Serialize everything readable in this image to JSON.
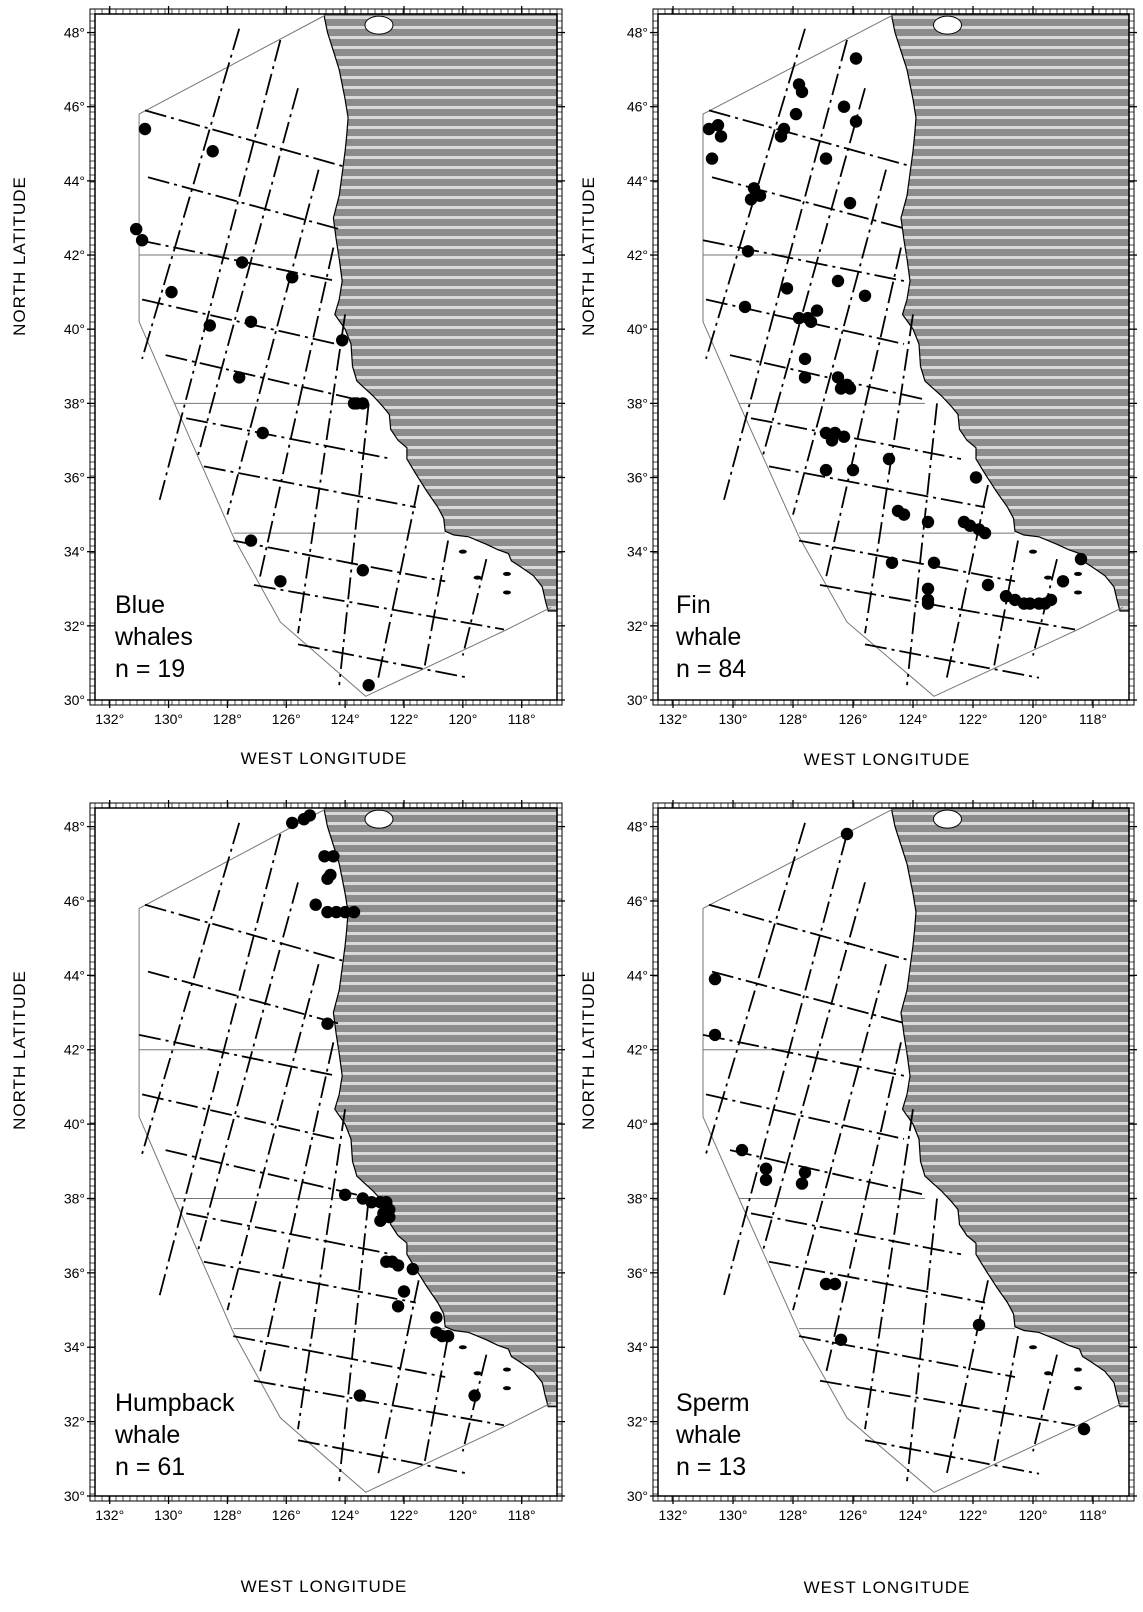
{
  "colors": {
    "land_fill": "#8c8c8c",
    "land_stripe": "#d9d9d9",
    "track_line": "#000000",
    "boundary_line": "#777777",
    "sighting_dot": "#000000"
  },
  "axes": {
    "xlabel": "WEST LONGITUDE",
    "ylabel": "NORTH LATITUDE",
    "x_ticks": [
      "132°",
      "130°",
      "128°",
      "126°",
      "124°",
      "122°",
      "120°",
      "118°"
    ],
    "y_ticks": [
      "30°",
      "32°",
      "34°",
      "36°",
      "38°",
      "40°",
      "42°",
      "44°",
      "46°",
      "48°"
    ],
    "lon_range": [
      -132.5,
      -116.8
    ],
    "lat_range": [
      30.0,
      48.5
    ]
  },
  "chart_data": [
    {
      "type": "scatter",
      "species": "Blue",
      "legend_lines": [
        "Blue",
        "whales",
        "n = 19"
      ],
      "xlabel": "WEST LONGITUDE",
      "ylabel": "NORTH LATITUDE",
      "points": [
        [
          -130.8,
          45.4
        ],
        [
          -128.5,
          44.8
        ],
        [
          -131.1,
          42.7
        ],
        [
          -130.9,
          42.4
        ],
        [
          -127.5,
          41.8
        ],
        [
          -125.8,
          41.4
        ],
        [
          -129.9,
          41.0
        ],
        [
          -128.6,
          40.1
        ],
        [
          -127.2,
          40.2
        ],
        [
          -124.1,
          39.7
        ],
        [
          -127.6,
          38.7
        ],
        [
          -123.7,
          38.0
        ],
        [
          -123.4,
          38.0
        ],
        [
          -126.8,
          37.2
        ],
        [
          -127.2,
          34.3
        ],
        [
          -126.2,
          33.2
        ],
        [
          -123.4,
          33.5
        ],
        [
          -123.2,
          30.4
        ],
        [
          -123.6,
          38.0
        ]
      ]
    },
    {
      "type": "scatter",
      "species": "Fin",
      "legend_lines": [
        "Fin",
        "whale",
        "n = 84"
      ],
      "xlabel": "WEST LONGITUDE",
      "ylabel": "NORTH LATITUDE",
      "points": [
        [
          -125.9,
          47.3
        ],
        [
          -127.8,
          46.6
        ],
        [
          -127.7,
          46.4
        ],
        [
          -126.3,
          46.0
        ],
        [
          -130.8,
          45.4
        ],
        [
          -130.5,
          45.5
        ],
        [
          -130.4,
          45.2
        ],
        [
          -128.3,
          45.4
        ],
        [
          -128.4,
          45.2
        ],
        [
          -127.9,
          45.8
        ],
        [
          -125.9,
          45.6
        ],
        [
          -130.7,
          44.6
        ],
        [
          -126.9,
          44.6
        ],
        [
          -129.3,
          43.8
        ],
        [
          -129.1,
          43.6
        ],
        [
          -129.4,
          43.5
        ],
        [
          -126.1,
          43.4
        ],
        [
          -129.5,
          42.1
        ],
        [
          -126.5,
          41.3
        ],
        [
          -128.2,
          41.1
        ],
        [
          -125.6,
          40.9
        ],
        [
          -129.6,
          40.6
        ],
        [
          -127.8,
          40.3
        ],
        [
          -127.2,
          40.5
        ],
        [
          -127.4,
          40.2
        ],
        [
          -127.5,
          40.3
        ],
        [
          -127.6,
          39.2
        ],
        [
          -127.6,
          38.7
        ],
        [
          -126.5,
          38.7
        ],
        [
          -126.4,
          38.4
        ],
        [
          -126.1,
          38.4
        ],
        [
          -126.2,
          38.5
        ],
        [
          -126.9,
          37.2
        ],
        [
          -126.6,
          37.2
        ],
        [
          -126.3,
          37.1
        ],
        [
          -126.7,
          37.0
        ],
        [
          -126.9,
          36.2
        ],
        [
          -126.0,
          36.2
        ],
        [
          -124.8,
          36.5
        ],
        [
          -121.9,
          36.0
        ],
        [
          -124.5,
          35.1
        ],
        [
          -124.3,
          35.0
        ],
        [
          -123.5,
          34.8
        ],
        [
          -122.3,
          34.8
        ],
        [
          -122.1,
          34.7
        ],
        [
          -121.8,
          34.6
        ],
        [
          -121.6,
          34.5
        ],
        [
          -124.7,
          33.7
        ],
        [
          -123.3,
          33.7
        ],
        [
          -123.5,
          33.0
        ],
        [
          -123.5,
          32.7
        ],
        [
          -123.5,
          32.6
        ],
        [
          -121.5,
          33.1
        ],
        [
          -120.9,
          32.8
        ],
        [
          -120.6,
          32.7
        ],
        [
          -120.3,
          32.6
        ],
        [
          -120.1,
          32.6
        ],
        [
          -119.8,
          32.6
        ],
        [
          -119.6,
          32.6
        ],
        [
          -119.4,
          32.7
        ],
        [
          -119.0,
          33.2
        ],
        [
          -118.4,
          33.8
        ]
      ]
    },
    {
      "type": "scatter",
      "species": "Humpback",
      "legend_lines": [
        "Humpback",
        "whale",
        "n = 61"
      ],
      "xlabel": "WEST LONGITUDE",
      "ylabel": "NORTH LATITUDE",
      "points": [
        [
          -125.8,
          48.1
        ],
        [
          -125.4,
          48.2
        ],
        [
          -125.2,
          48.3
        ],
        [
          -124.7,
          47.2
        ],
        [
          -124.4,
          47.2
        ],
        [
          -124.6,
          46.6
        ],
        [
          -124.5,
          46.7
        ],
        [
          -125.0,
          45.9
        ],
        [
          -124.6,
          45.7
        ],
        [
          -124.3,
          45.7
        ],
        [
          -124.0,
          45.7
        ],
        [
          -123.7,
          45.7
        ],
        [
          -124.6,
          42.7
        ],
        [
          -124.0,
          38.1
        ],
        [
          -123.4,
          38.0
        ],
        [
          -123.1,
          37.9
        ],
        [
          -122.8,
          37.9
        ],
        [
          -122.6,
          37.9
        ],
        [
          -122.6,
          37.6
        ],
        [
          -122.8,
          37.4
        ],
        [
          -122.5,
          37.5
        ],
        [
          -122.5,
          37.7
        ],
        [
          -122.6,
          36.3
        ],
        [
          -122.4,
          36.3
        ],
        [
          -122.2,
          36.2
        ],
        [
          -121.7,
          36.1
        ],
        [
          -122.0,
          35.5
        ],
        [
          -122.2,
          35.1
        ],
        [
          -120.9,
          34.8
        ],
        [
          -120.9,
          34.4
        ],
        [
          -120.7,
          34.3
        ],
        [
          -120.5,
          34.3
        ],
        [
          -123.5,
          32.7
        ],
        [
          -119.6,
          32.7
        ],
        [
          -122.7,
          37.6
        ]
      ]
    },
    {
      "type": "scatter",
      "species": "Sperm",
      "legend_lines": [
        "Sperm",
        "whale",
        "n = 13"
      ],
      "xlabel": "WEST LONGITUDE",
      "ylabel": "NORTH LATITUDE",
      "points": [
        [
          -126.2,
          47.8
        ],
        [
          -130.6,
          43.9
        ],
        [
          -130.6,
          42.4
        ],
        [
          -129.7,
          39.3
        ],
        [
          -128.9,
          38.8
        ],
        [
          -128.9,
          38.5
        ],
        [
          -127.6,
          38.7
        ],
        [
          -127.7,
          38.4
        ],
        [
          -126.9,
          35.7
        ],
        [
          -126.6,
          35.7
        ],
        [
          -126.4,
          34.2
        ],
        [
          -121.8,
          34.6
        ],
        [
          -118.3,
          31.8
        ]
      ]
    }
  ]
}
